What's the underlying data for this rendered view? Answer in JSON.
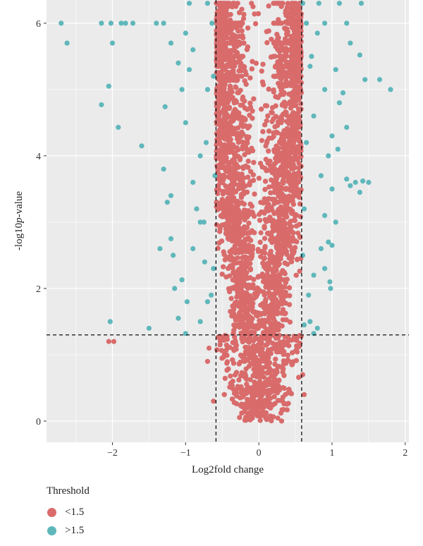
{
  "chart_data": {
    "type": "scatter",
    "title": "",
    "xlabel": "Log2fold change",
    "ylabel_prefix": "-log10",
    "ylabel_italic": "p",
    "ylabel_suffix": "-value",
    "xlim": [
      -2.9,
      2.05
    ],
    "ylim": [
      -0.32,
      6.35
    ],
    "x_ticks": [
      -2,
      -1,
      0,
      1,
      2
    ],
    "y_ticks": [
      0,
      2,
      4,
      6
    ],
    "grid": true,
    "thresholds": {
      "vertical": [
        -0.585,
        0.585
      ],
      "horizontal": 1.3
    },
    "colors": {
      "low": "#d96b6b",
      "high": "#5fb7bb",
      "panel": "#ebebeb",
      "grid": "#ffffff"
    },
    "legend": {
      "title": "Threshold",
      "position": "bottom-left",
      "items": [
        {
          "label": "<1.5",
          "color": "#d96b6b"
        },
        {
          "label": ">1.5",
          "color": "#5fb7bb"
        }
      ]
    },
    "series": [
      {
        "name": "<1.5",
        "color": "#d96b6b",
        "note": "dense core of ~10000 points with |Log2fold change| < 0.585, forming a V shape; higher -log10 p-values cluster toward |x|≈0.4–0.58",
        "points": [
          [
            -2.05,
            1.2
          ],
          [
            -1.98,
            1.2
          ],
          [
            -0.7,
            0.9
          ],
          [
            -0.68,
            1.1
          ],
          [
            0.62,
            0.4
          ],
          [
            0.6,
            0.7
          ],
          [
            -0.62,
            0.3
          ],
          [
            -0.58,
            6.3
          ],
          [
            0.57,
            6.3
          ],
          [
            -0.1,
            6.3
          ],
          [
            0.2,
            6.3
          ]
        ]
      },
      {
        "name": ">1.5",
        "color": "#5fb7bb",
        "points": [
          [
            -2.7,
            6.0
          ],
          [
            -2.62,
            5.7
          ],
          [
            -2.15,
            6.0
          ],
          [
            -2.02,
            6.0
          ],
          [
            -2.0,
            5.7
          ],
          [
            -1.88,
            6.0
          ],
          [
            -1.82,
            6.0
          ],
          [
            -1.72,
            6.0
          ],
          [
            -1.4,
            6.0
          ],
          [
            -1.3,
            6.0
          ],
          [
            -1.2,
            5.7
          ],
          [
            -2.05,
            5.05
          ],
          [
            -2.15,
            4.77
          ],
          [
            -1.92,
            4.43
          ],
          [
            -1.6,
            4.15
          ],
          [
            -1.28,
            4.74
          ],
          [
            -1.3,
            3.8
          ],
          [
            -1.2,
            3.4
          ],
          [
            -1.25,
            3.3
          ],
          [
            -1.2,
            2.75
          ],
          [
            -1.35,
            2.6
          ],
          [
            -1.17,
            2.5
          ],
          [
            -1.15,
            2.0
          ],
          [
            -1.05,
            2.13
          ],
          [
            -1.1,
            1.55
          ],
          [
            -2.03,
            1.5
          ],
          [
            -1.5,
            1.4
          ],
          [
            -1.0,
            1.32
          ],
          [
            -0.98,
            1.8
          ],
          [
            -0.9,
            2.6
          ],
          [
            -0.85,
            3.2
          ],
          [
            -0.8,
            3.0
          ],
          [
            -0.9,
            3.6
          ],
          [
            -0.8,
            4.0
          ],
          [
            -1.0,
            4.5
          ],
          [
            -1.05,
            5.0
          ],
          [
            -0.95,
            5.3
          ],
          [
            -0.9,
            5.6
          ],
          [
            -0.7,
            5.0
          ],
          [
            -0.72,
            4.2
          ],
          [
            -0.75,
            3.0
          ],
          [
            -0.74,
            2.4
          ],
          [
            -0.7,
            1.8
          ],
          [
            -0.8,
            1.5
          ],
          [
            -0.65,
            1.9
          ],
          [
            -0.62,
            2.3
          ],
          [
            -0.6,
            3.7
          ],
          [
            -0.62,
            5.2
          ],
          [
            -0.64,
            6.0
          ],
          [
            -0.7,
            6.3
          ],
          [
            -0.95,
            6.3
          ],
          [
            -1.1,
            5.4
          ],
          [
            -1.0,
            5.85
          ],
          [
            0.65,
            6.0
          ],
          [
            0.9,
            6.0
          ],
          [
            1.2,
            6.0
          ],
          [
            1.25,
            5.7
          ],
          [
            1.38,
            5.52
          ],
          [
            1.45,
            5.15
          ],
          [
            1.65,
            5.15
          ],
          [
            1.8,
            5.0
          ],
          [
            1.15,
            4.95
          ],
          [
            1.05,
            5.3
          ],
          [
            1.1,
            4.8
          ],
          [
            0.9,
            5.0
          ],
          [
            0.75,
            4.6
          ],
          [
            1.0,
            4.3
          ],
          [
            1.08,
            4.1
          ],
          [
            1.2,
            4.43
          ],
          [
            0.95,
            4.0
          ],
          [
            0.85,
            3.7
          ],
          [
            1.0,
            3.5
          ],
          [
            1.05,
            3.0
          ],
          [
            1.2,
            3.65
          ],
          [
            1.32,
            3.6
          ],
          [
            1.38,
            3.45
          ],
          [
            1.42,
            3.62
          ],
          [
            1.5,
            3.6
          ],
          [
            1.25,
            3.55
          ],
          [
            0.9,
            3.1
          ],
          [
            0.95,
            2.7
          ],
          [
            1.0,
            2.65
          ],
          [
            0.85,
            2.6
          ],
          [
            0.9,
            2.3
          ],
          [
            0.97,
            2.1
          ],
          [
            0.98,
            2.0
          ],
          [
            0.75,
            2.2
          ],
          [
            0.68,
            1.9
          ],
          [
            0.7,
            1.5
          ],
          [
            0.8,
            1.4
          ],
          [
            0.75,
            1.32
          ],
          [
            0.62,
            1.45
          ],
          [
            0.6,
            2.5
          ],
          [
            0.62,
            3.2
          ],
          [
            0.65,
            4.2
          ],
          [
            0.72,
            5.5
          ],
          [
            0.6,
            6.3
          ],
          [
            0.82,
            6.3
          ],
          [
            1.1,
            6.3
          ],
          [
            1.4,
            6.3
          ],
          [
            0.8,
            5.85
          ],
          [
            0.7,
            5.35
          ]
        ]
      }
    ]
  }
}
